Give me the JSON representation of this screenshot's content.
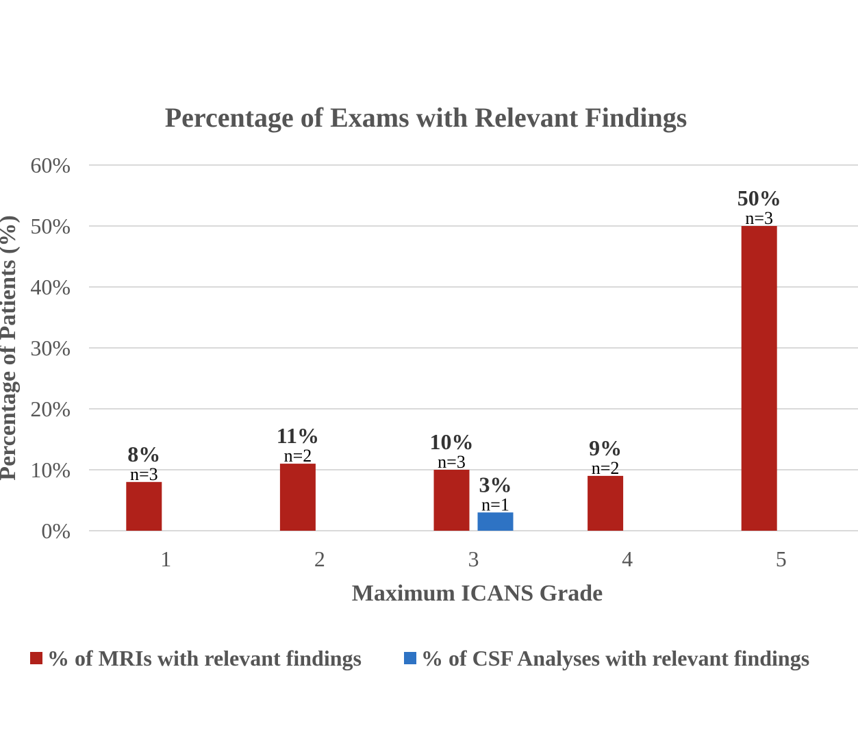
{
  "chart_data": {
    "type": "bar",
    "title": "Percentage of Exams with Relevant Findings",
    "xlabel": "Maximum ICANS Grade",
    "ylabel": "Percentage of Patients (%)",
    "ylim": [
      0,
      60
    ],
    "yticks": [
      "0%",
      "10%",
      "20%",
      "30%",
      "40%",
      "50%",
      "60%"
    ],
    "categories": [
      "1",
      "2",
      "3",
      "4",
      "5"
    ],
    "series": [
      {
        "name": "% of MRIs with relevant findings",
        "color": "#b0211a",
        "values": [
          8,
          11,
          10,
          9,
          50
        ],
        "labels": [
          "8%",
          "11%",
          "10%",
          "9%",
          "50%"
        ],
        "n": [
          "n=3",
          "n=2",
          "n=3",
          "n=2",
          "n=3"
        ]
      },
      {
        "name": "% of CSF Analyses with relevant findings",
        "color": "#2e73c4",
        "values": [
          null,
          null,
          3,
          null,
          null
        ],
        "labels": [
          null,
          null,
          "3%",
          null,
          null
        ],
        "n": [
          null,
          null,
          "n=1",
          null,
          null
        ]
      }
    ],
    "legend_position": "bottom",
    "grid": true
  }
}
